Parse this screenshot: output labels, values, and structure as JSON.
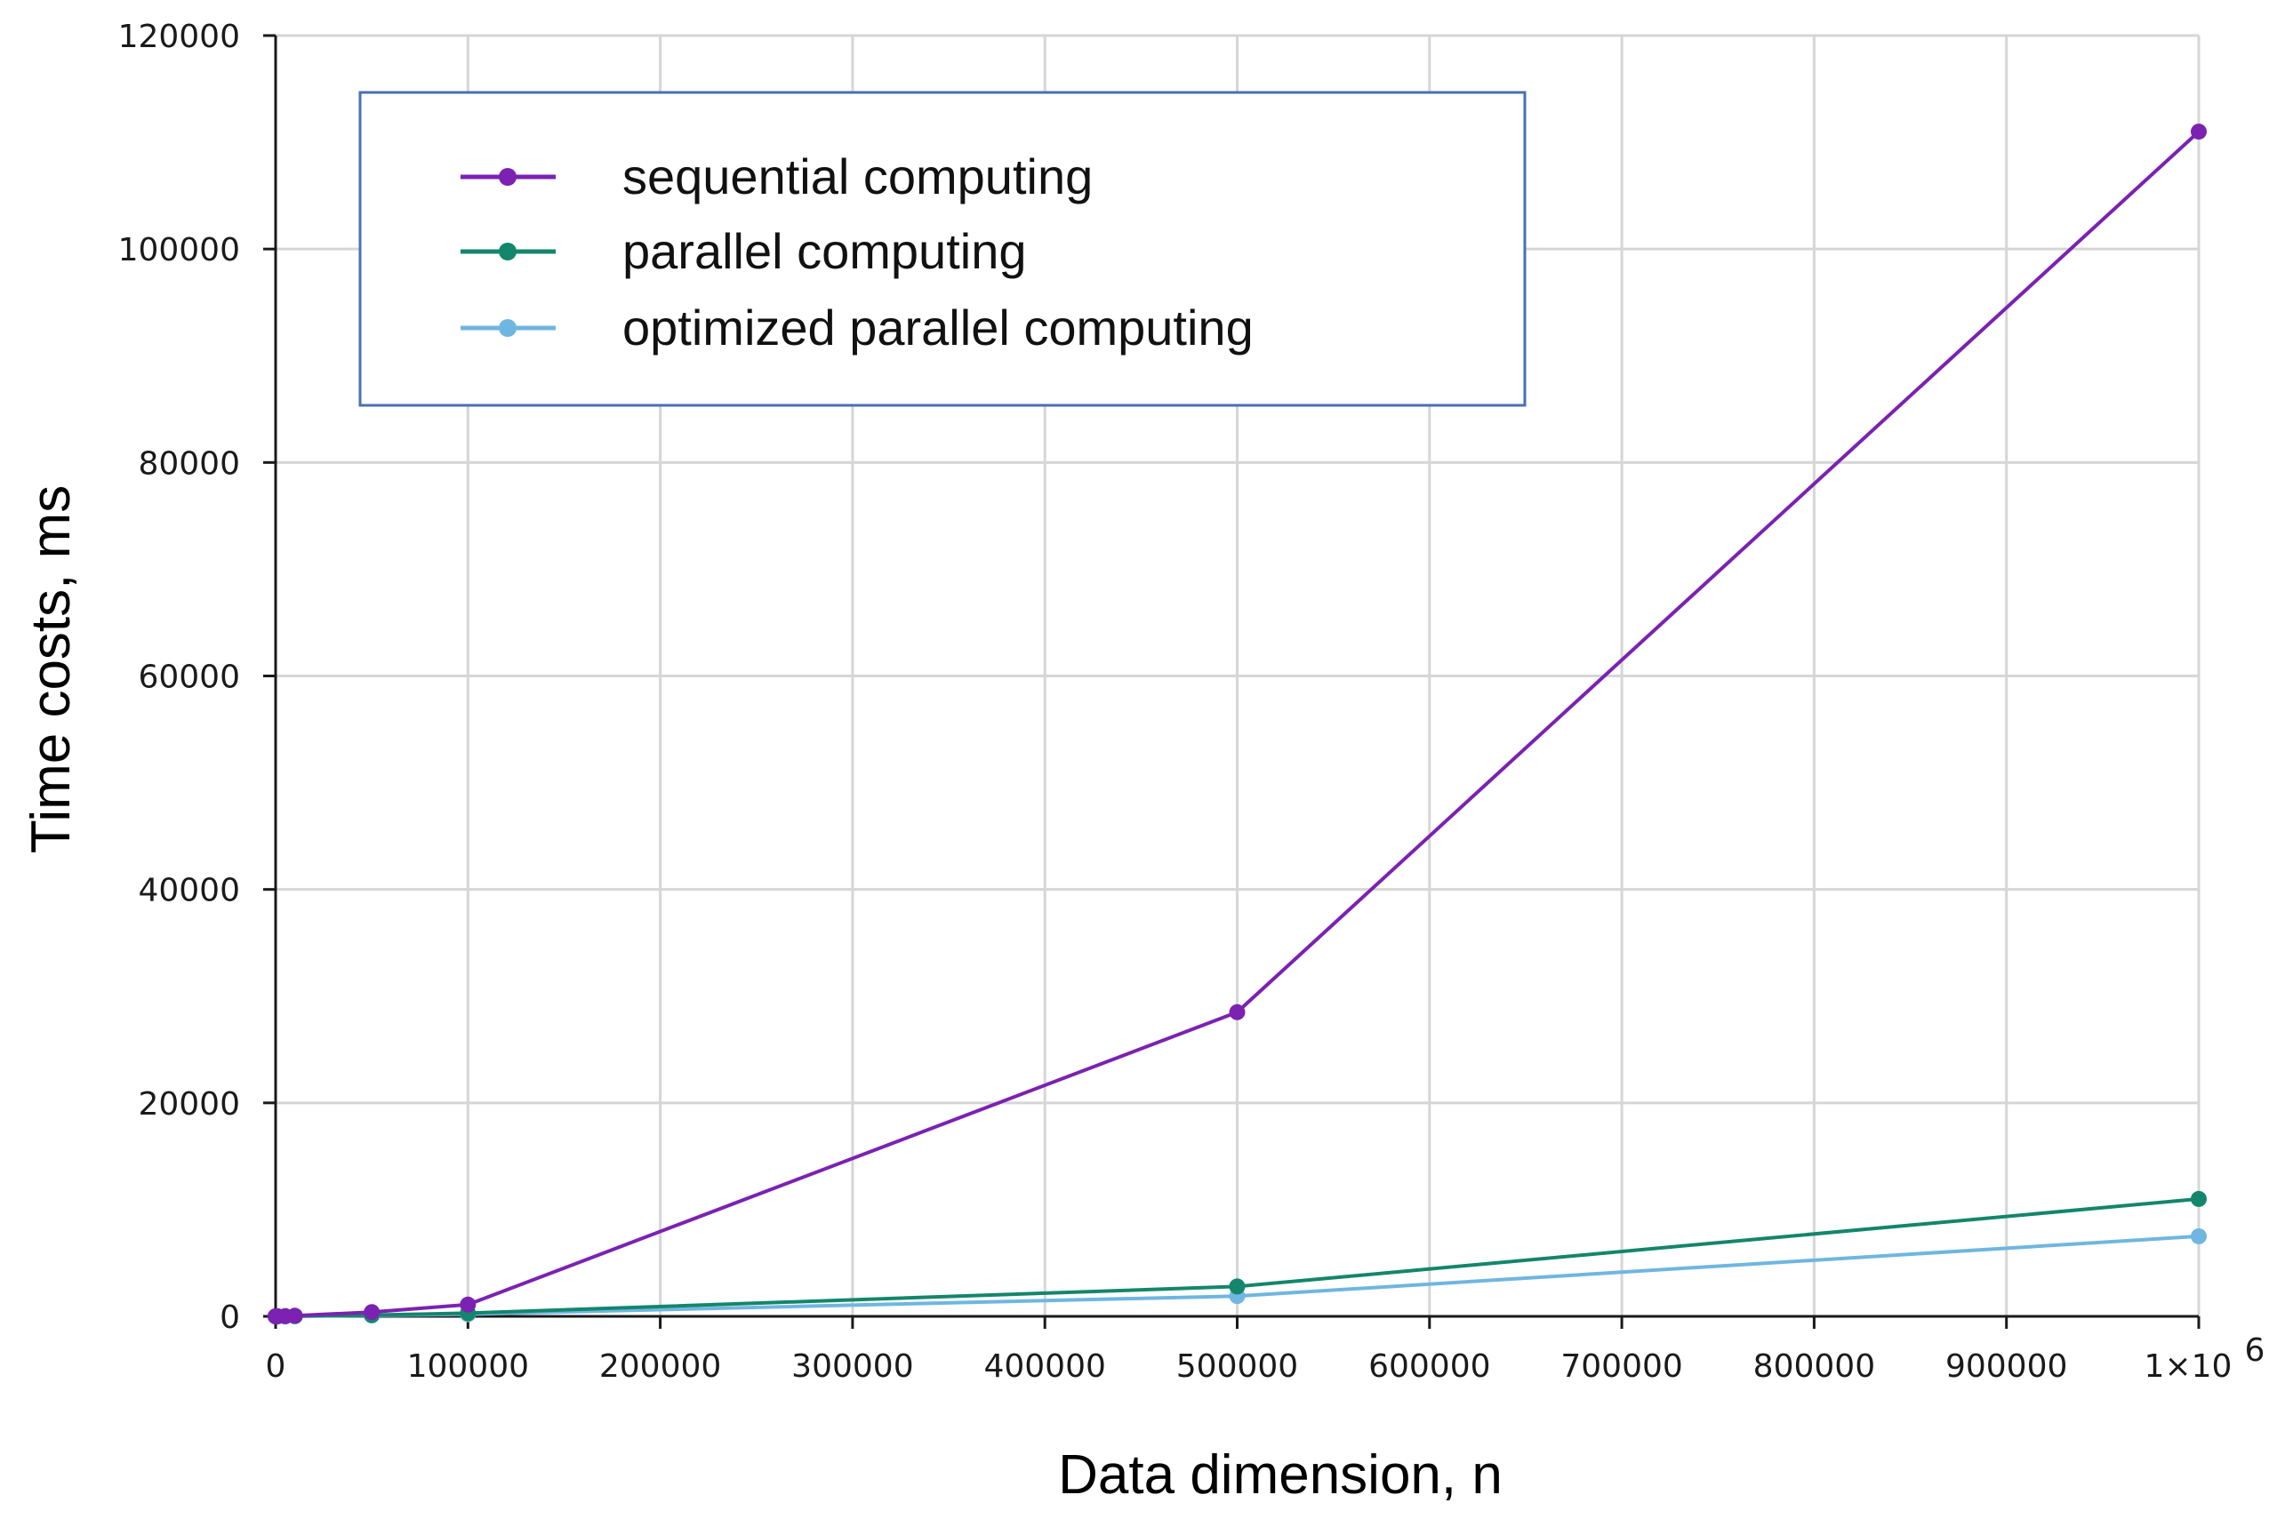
{
  "chart_data": {
    "type": "line",
    "title": "",
    "xlabel": "Data dimension, n",
    "ylabel": "Time costs, ms",
    "xlim": [
      0,
      1000000
    ],
    "ylim": [
      0,
      120000
    ],
    "x_ticks": [
      0,
      100000,
      200000,
      300000,
      400000,
      500000,
      600000,
      700000,
      800000,
      900000,
      1000000
    ],
    "x_tick_labels": [
      "0",
      "100000",
      "200000",
      "300000",
      "400000",
      "500000",
      "600000",
      "700000",
      "800000",
      "900000",
      "1×10"
    ],
    "x_tick_last_exponent": "6",
    "y_ticks": [
      0,
      20000,
      40000,
      60000,
      80000,
      100000,
      120000
    ],
    "y_tick_labels": [
      "0",
      "20000",
      "40000",
      "60000",
      "80000",
      "100000",
      "120000"
    ],
    "grid": true,
    "legend_position": "top-left",
    "x": [
      0,
      1000,
      5000,
      10000,
      50000,
      100000,
      500000,
      1000000
    ],
    "series": [
      {
        "name": "sequential computing",
        "color": "#7b22b2",
        "values": [
          0,
          5,
          20,
          60,
          400,
          1100,
          28500,
          111000
        ]
      },
      {
        "name": "parallel computing",
        "color": "#13866b",
        "values": [
          0,
          2,
          8,
          20,
          120,
          300,
          2800,
          11000
        ]
      },
      {
        "name": "optimized parallel computing",
        "color": "#6fb6e0",
        "values": [
          0,
          1,
          5,
          12,
          80,
          200,
          1900,
          7500
        ]
      }
    ]
  }
}
